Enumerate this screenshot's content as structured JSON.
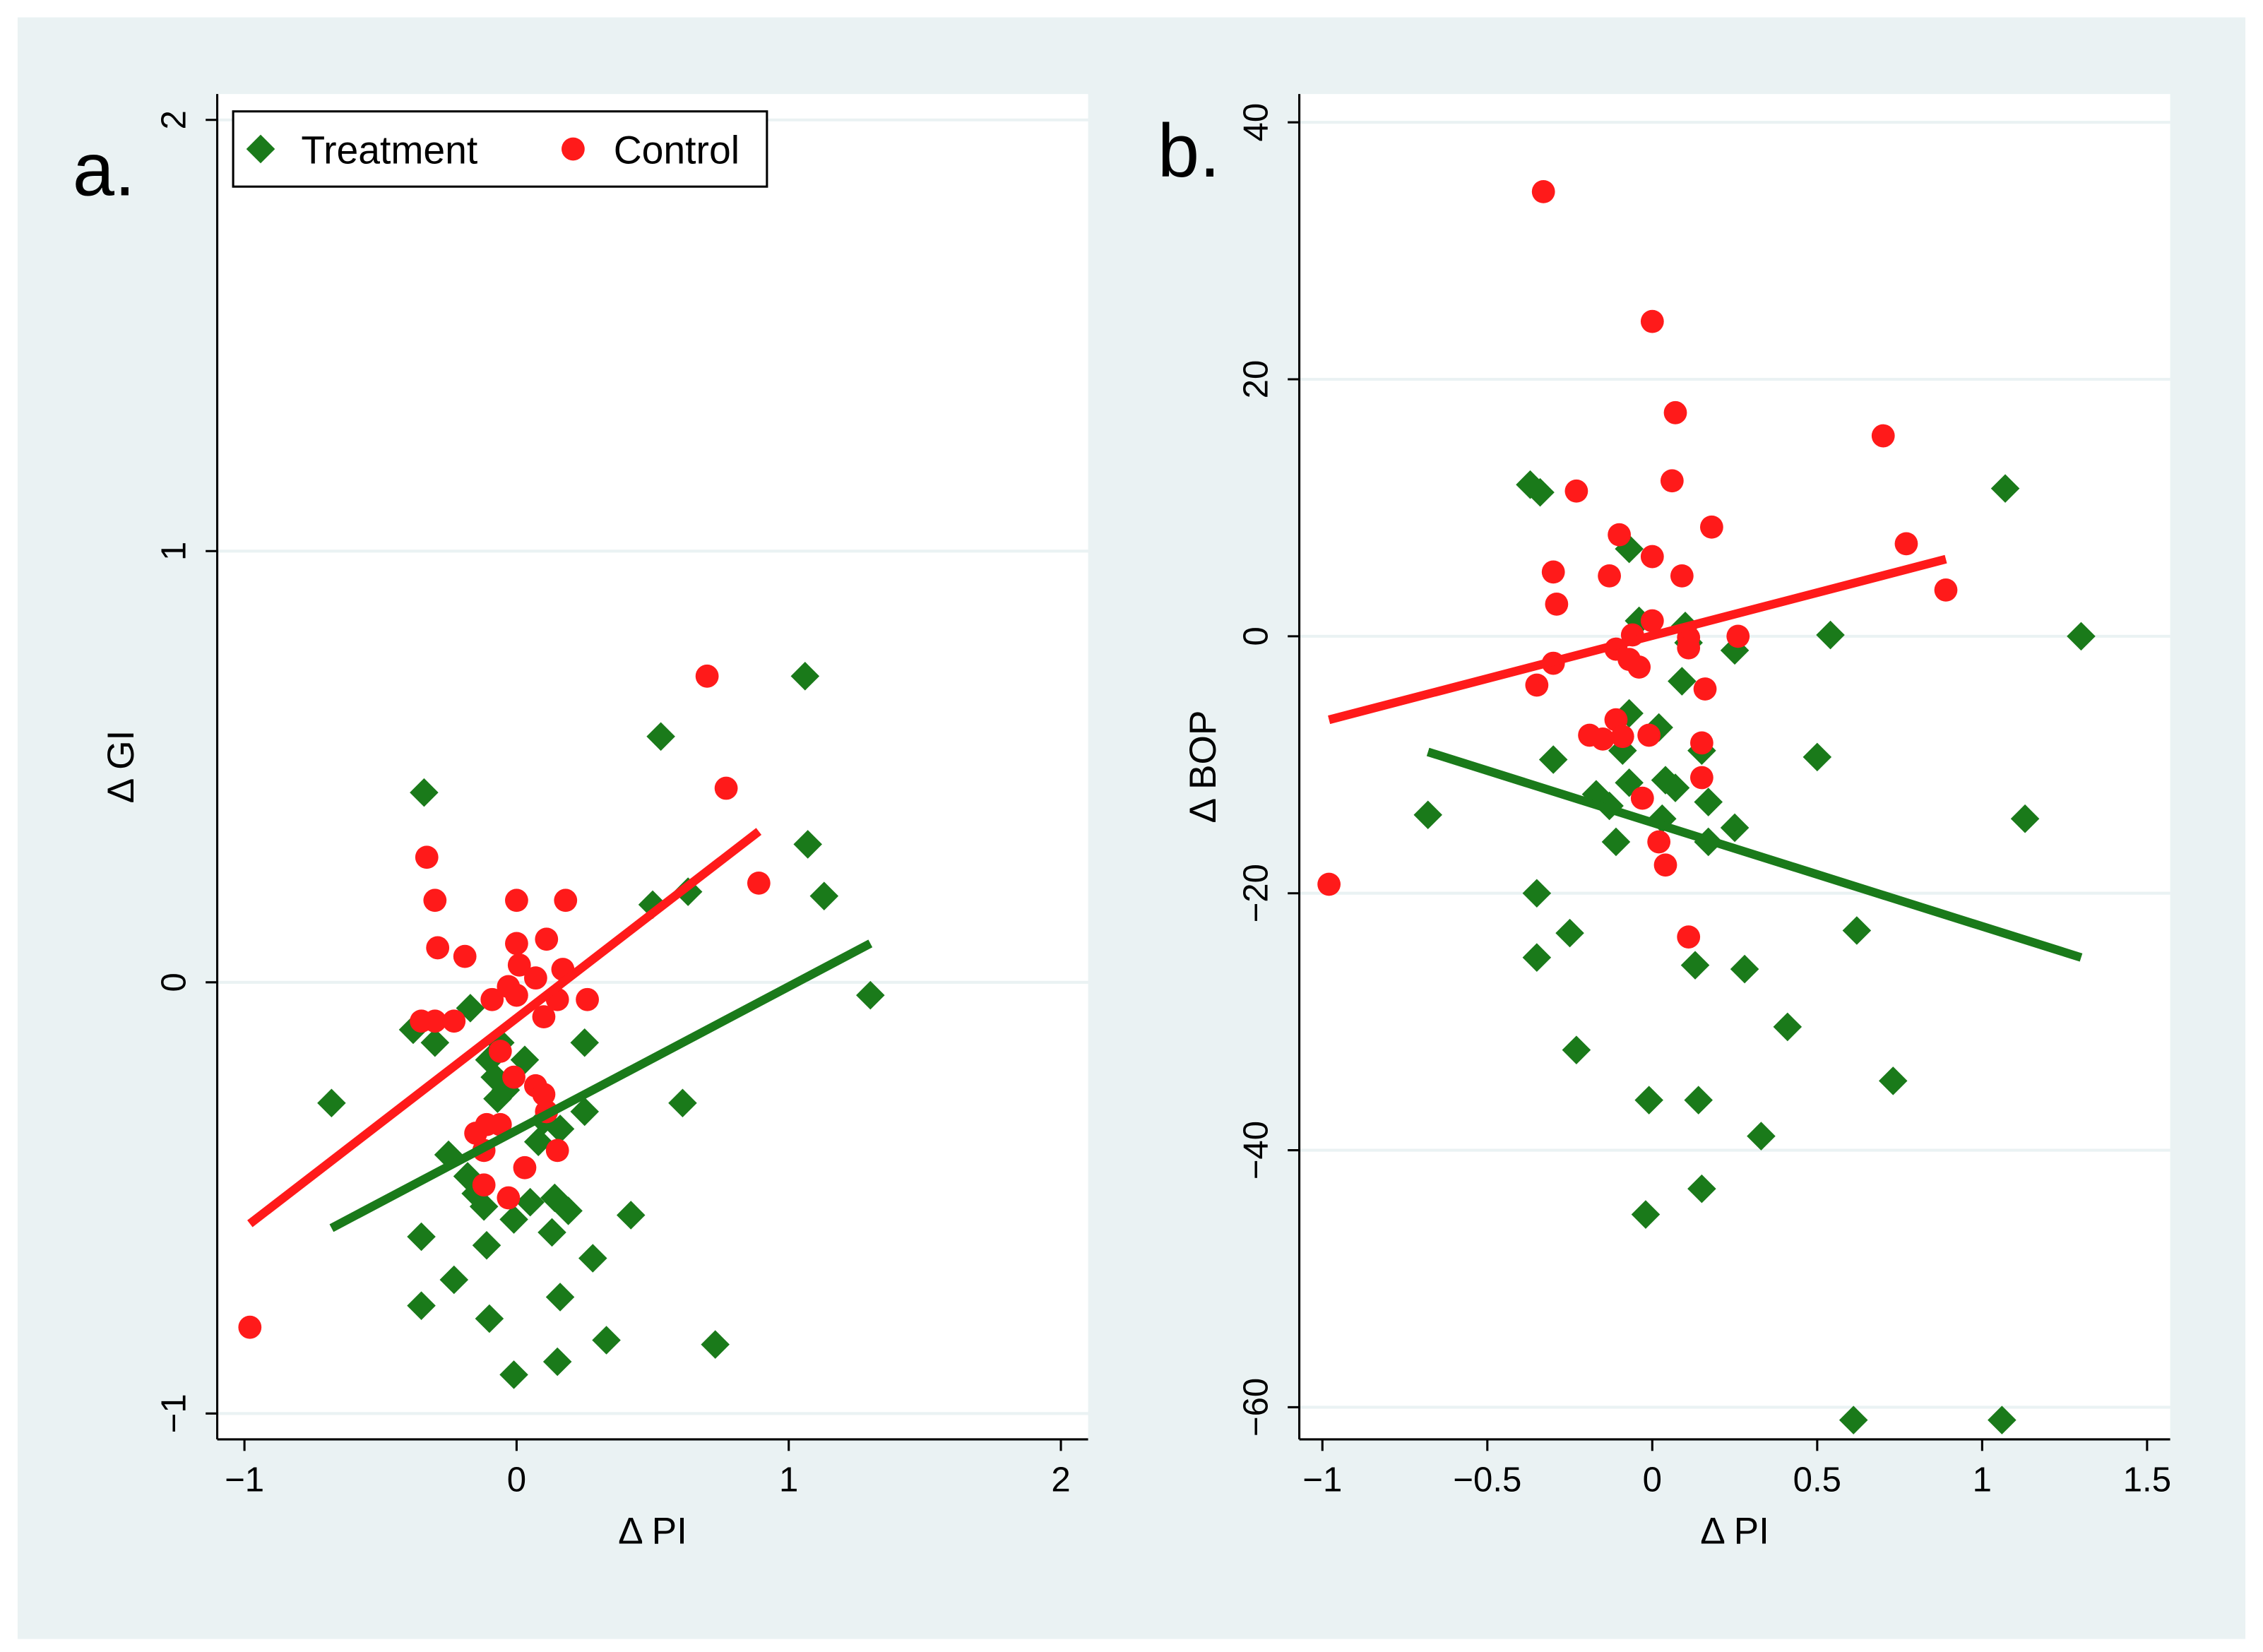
{
  "colors": {
    "treatment": "#1a7a1a",
    "control": "#ff1a1a",
    "background": "#eaf2f3"
  },
  "legend": {
    "treatment_label": "Treatment",
    "control_label": "Control"
  },
  "chart_data": [
    {
      "type": "scatter",
      "panel_label": "a.",
      "xlabel": "Δ PI",
      "ylabel": "Δ GI",
      "xlim": [
        -1.1,
        2.1
      ],
      "ylim": [
        -1.06,
        2.06
      ],
      "xticks": [
        -1,
        0,
        1,
        2
      ],
      "xtick_labels": [
        "−1",
        "0",
        "1",
        "2"
      ],
      "yticks": [
        -1,
        0,
        1,
        2
      ],
      "ytick_labels": [
        "−1",
        "0",
        "1",
        "2"
      ],
      "grid": true,
      "legend_position": "top-left",
      "series": [
        {
          "name": "Treatment",
          "marker": "diamond",
          "points": [
            [
              1.06,
              0.71
            ],
            [
              0.53,
              0.57
            ],
            [
              -0.34,
              0.44
            ],
            [
              1.07,
              0.32
            ],
            [
              1.13,
              0.2
            ],
            [
              0.63,
              0.21
            ],
            [
              0.5,
              0.18
            ],
            [
              1.3,
              -0.03
            ],
            [
              -0.17,
              -0.06
            ],
            [
              -0.38,
              -0.11
            ],
            [
              -0.3,
              -0.14
            ],
            [
              0.25,
              -0.14
            ],
            [
              -0.06,
              -0.14
            ],
            [
              -0.1,
              -0.18
            ],
            [
              0.03,
              -0.18
            ],
            [
              -0.08,
              -0.22
            ],
            [
              -0.04,
              -0.25
            ],
            [
              -0.07,
              -0.27
            ],
            [
              -0.68,
              -0.28
            ],
            [
              0.61,
              -0.28
            ],
            [
              0.25,
              -0.3
            ],
            [
              0.1,
              -0.32
            ],
            [
              0.16,
              -0.34
            ],
            [
              0.08,
              -0.37
            ],
            [
              -0.25,
              -0.4
            ],
            [
              -0.18,
              -0.45
            ],
            [
              -0.15,
              -0.49
            ],
            [
              -0.12,
              -0.52
            ],
            [
              0.05,
              -0.51
            ],
            [
              -0.01,
              -0.55
            ],
            [
              0.14,
              -0.5
            ],
            [
              0.19,
              -0.53
            ],
            [
              0.42,
              -0.54
            ],
            [
              -0.35,
              -0.59
            ],
            [
              0.13,
              -0.58
            ],
            [
              -0.11,
              -0.61
            ],
            [
              0.28,
              -0.64
            ],
            [
              -0.23,
              -0.69
            ],
            [
              0.16,
              -0.73
            ],
            [
              -0.35,
              -0.75
            ],
            [
              -0.1,
              -0.78
            ],
            [
              0.33,
              -0.83
            ],
            [
              0.73,
              -0.84
            ],
            [
              0.15,
              -0.88
            ],
            [
              -0.01,
              -0.91
            ]
          ],
          "fit_line": [
            [
              -0.68,
              -0.57
            ],
            [
              1.3,
              0.09
            ]
          ]
        },
        {
          "name": "Control",
          "marker": "circle",
          "points": [
            [
              0.7,
              0.71
            ],
            [
              0.77,
              0.45
            ],
            [
              0.89,
              0.23
            ],
            [
              -0.33,
              0.29
            ],
            [
              -0.3,
              0.19
            ],
            [
              0.0,
              0.19
            ],
            [
              0.18,
              0.19
            ],
            [
              0.11,
              0.1
            ],
            [
              -0.29,
              0.08
            ],
            [
              0.0,
              0.09
            ],
            [
              -0.19,
              0.06
            ],
            [
              0.01,
              0.04
            ],
            [
              0.17,
              0.03
            ],
            [
              0.07,
              0.01
            ],
            [
              -0.03,
              -0.01
            ],
            [
              0.0,
              -0.03
            ],
            [
              -0.09,
              -0.04
            ],
            [
              0.15,
              -0.04
            ],
            [
              0.26,
              -0.04
            ],
            [
              0.1,
              -0.08
            ],
            [
              -0.35,
              -0.09
            ],
            [
              -0.3,
              -0.09
            ],
            [
              -0.23,
              -0.09
            ],
            [
              -0.06,
              -0.16
            ],
            [
              -0.01,
              -0.22
            ],
            [
              0.07,
              -0.24
            ],
            [
              0.1,
              -0.26
            ],
            [
              0.11,
              -0.3
            ],
            [
              -0.06,
              -0.33
            ],
            [
              -0.11,
              -0.33
            ],
            [
              -0.15,
              -0.35
            ],
            [
              0.15,
              -0.39
            ],
            [
              -0.12,
              -0.39
            ],
            [
              0.03,
              -0.43
            ],
            [
              -0.12,
              -0.47
            ],
            [
              -0.03,
              -0.5
            ],
            [
              -0.98,
              -0.8
            ]
          ],
          "fit_line": [
            [
              -0.98,
              -0.56
            ],
            [
              0.89,
              0.35
            ]
          ]
        }
      ]
    },
    {
      "type": "scatter",
      "panel_label": "b.",
      "xlabel": "Δ PI",
      "ylabel": "Δ BOP",
      "xlim": [
        -1.07,
        1.57
      ],
      "ylim": [
        -62.5,
        42.2
      ],
      "xticks": [
        -1,
        -0.5,
        0,
        0.5,
        1,
        1.5
      ],
      "xtick_labels": [
        "−1",
        "−0.5",
        "0",
        "0.5",
        "1",
        "1.5"
      ],
      "yticks": [
        -60,
        -40,
        -20,
        0,
        20,
        40
      ],
      "ytick_labels": [
        "−60",
        "−40",
        "−20",
        "0",
        "20",
        "40"
      ],
      "grid": true,
      "series": [
        {
          "name": "Treatment",
          "marker": "diamond",
          "points": [
            [
              -0.37,
              11.8
            ],
            [
              -0.34,
              11.2
            ],
            [
              -0.07,
              6.8
            ],
            [
              -0.04,
              1.2
            ],
            [
              0.1,
              0.8
            ],
            [
              0.11,
              -0.5
            ],
            [
              0.25,
              -1.1
            ],
            [
              0.54,
              0.1
            ],
            [
              1.3,
              0
            ],
            [
              1.07,
              11.5
            ],
            [
              0.09,
              -3.5
            ],
            [
              -0.07,
              -6
            ],
            [
              0.02,
              -7.1
            ],
            [
              -0.3,
              -9.6
            ],
            [
              -0.09,
              -8.9
            ],
            [
              -0.07,
              -11.4
            ],
            [
              0.04,
              -11.2
            ],
            [
              0.07,
              -11.8
            ],
            [
              0.15,
              -8.9
            ],
            [
              0.5,
              -9.4
            ],
            [
              -0.68,
              -13.9
            ],
            [
              -0.17,
              -12.3
            ],
            [
              -0.13,
              -13.2
            ],
            [
              0.03,
              -14.2
            ],
            [
              0.17,
              -12.9
            ],
            [
              -0.11,
              -16
            ],
            [
              0.17,
              -16
            ],
            [
              0.25,
              -14.9
            ],
            [
              1.13,
              -14.2
            ],
            [
              -0.35,
              -20
            ],
            [
              -0.25,
              -23.1
            ],
            [
              -0.35,
              -25
            ],
            [
              0.13,
              -25.6
            ],
            [
              0.28,
              -25.9
            ],
            [
              0.62,
              -22.9
            ],
            [
              0.41,
              -30.4
            ],
            [
              -0.23,
              -32.2
            ],
            [
              0.73,
              -34.6
            ],
            [
              -0.01,
              -36.1
            ],
            [
              0.14,
              -36.1
            ],
            [
              0.33,
              -38.9
            ],
            [
              0.15,
              -43
            ],
            [
              -0.02,
              -45
            ],
            [
              0.61,
              -61
            ],
            [
              1.06,
              -61
            ]
          ],
          "fit_line": [
            [
              -0.68,
              -9
            ],
            [
              1.3,
              -25
            ]
          ]
        },
        {
          "name": "Control",
          "marker": "circle",
          "points": [
            [
              -0.33,
              34.6
            ],
            [
              0,
              24.5
            ],
            [
              0.07,
              17.4
            ],
            [
              0.7,
              15.6
            ],
            [
              -0.23,
              11.3
            ],
            [
              0.06,
              12.1
            ],
            [
              0.18,
              8.5
            ],
            [
              -0.1,
              7.9
            ],
            [
              0.77,
              7.2
            ],
            [
              0.0,
              6.2
            ],
            [
              -0.3,
              5
            ],
            [
              -0.13,
              4.7
            ],
            [
              0.09,
              4.7
            ],
            [
              0.89,
              3.6
            ],
            [
              -0.29,
              2.5
            ],
            [
              0.0,
              1.2
            ],
            [
              -0.06,
              0.1
            ],
            [
              0.11,
              -0.1
            ],
            [
              0.26,
              0
            ],
            [
              0.11,
              -0.9
            ],
            [
              -0.11,
              -1
            ],
            [
              -0.07,
              -1.8
            ],
            [
              -0.04,
              -2.4
            ],
            [
              -0.3,
              -2.1
            ],
            [
              -0.35,
              -3.8
            ],
            [
              0.16,
              -4.1
            ],
            [
              -0.11,
              -6.5
            ],
            [
              -0.19,
              -7.7
            ],
            [
              -0.15,
              -8
            ],
            [
              -0.09,
              -7.8
            ],
            [
              -0.01,
              -7.7
            ],
            [
              0.15,
              -8.3
            ],
            [
              0.15,
              -11
            ],
            [
              -0.03,
              -12.6
            ],
            [
              0.02,
              -16
            ],
            [
              0.04,
              -17.8
            ],
            [
              0.11,
              -23.4
            ],
            [
              -0.98,
              -19.3
            ]
          ],
          "fit_line": [
            [
              -0.98,
              -6.5
            ],
            [
              0.89,
              6
            ]
          ]
        }
      ]
    }
  ]
}
